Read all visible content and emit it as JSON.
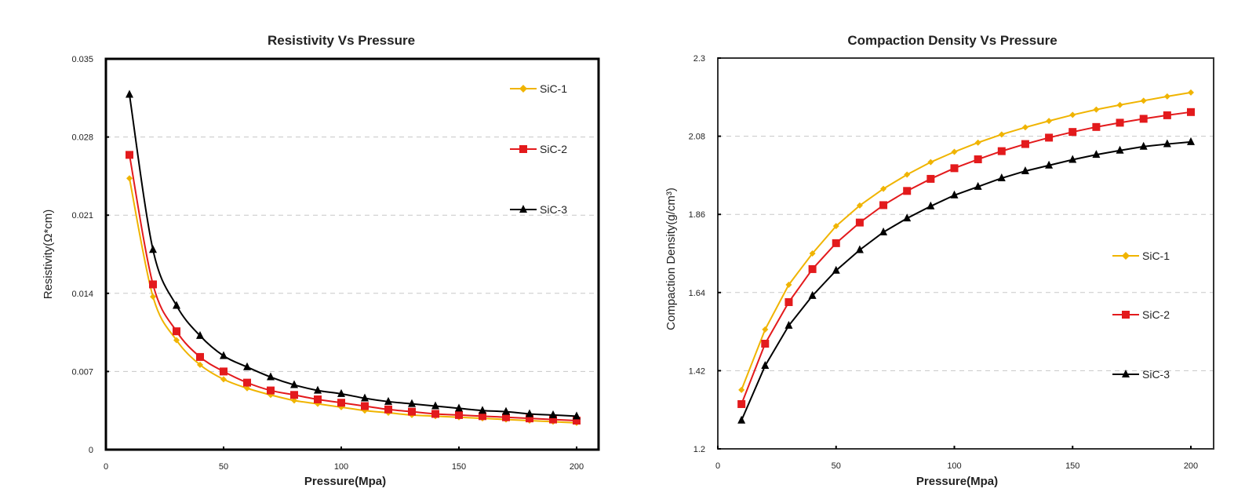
{
  "chart_data": [
    {
      "type": "line",
      "title": "Resistivity Vs Pressure",
      "xlabel": "Pressure(Mpa)",
      "ylabel": "Resistivity(Ω*cm)",
      "xlim": [
        0,
        210
      ],
      "ylim": [
        0,
        0.035
      ],
      "xticks": [
        0,
        50,
        100,
        150,
        200
      ],
      "yticks": [
        0,
        0.007,
        0.014,
        0.021,
        0.028,
        0.035
      ],
      "xtick_labels": [
        "0",
        "50",
        "100",
        "150",
        "200"
      ],
      "ytick_labels": [
        "0",
        "0.007",
        "0.014",
        "0.021",
        "0.028",
        "0.035"
      ],
      "grid": "horizontal-dashed",
      "legend_position": "top-right",
      "x": [
        10,
        20,
        30,
        40,
        50,
        60,
        70,
        80,
        90,
        100,
        110,
        120,
        130,
        140,
        150,
        160,
        170,
        180,
        190,
        200
      ],
      "series": [
        {
          "name": "SiC-1",
          "color": "#f0b400",
          "marker": "diamond",
          "values": [
            0.0243,
            0.0137,
            0.0098,
            0.0076,
            0.0063,
            0.0055,
            0.0049,
            0.0044,
            0.0041,
            0.0038,
            0.0035,
            0.0033,
            0.0031,
            0.003,
            0.0029,
            0.0028,
            0.0027,
            0.0026,
            0.0025,
            0.0024
          ]
        },
        {
          "name": "SiC-2",
          "color": "#e31a1c",
          "marker": "square",
          "values": [
            0.0264,
            0.0148,
            0.0106,
            0.0083,
            0.007,
            0.006,
            0.0053,
            0.0049,
            0.0045,
            0.0042,
            0.0039,
            0.0036,
            0.0034,
            0.0032,
            0.0031,
            0.003,
            0.0029,
            0.0028,
            0.0027,
            0.0026
          ]
        },
        {
          "name": "SiC-3",
          "color": "#000000",
          "marker": "triangle",
          "values": [
            0.0318,
            0.0179,
            0.0129,
            0.0102,
            0.0084,
            0.0074,
            0.0065,
            0.0058,
            0.0053,
            0.005,
            0.0046,
            0.0043,
            0.0041,
            0.0039,
            0.0037,
            0.0035,
            0.0034,
            0.0032,
            0.0031,
            0.003
          ]
        }
      ]
    },
    {
      "type": "line",
      "title": "Compaction Density Vs Pressure",
      "xlabel": "Pressure(Mpa)",
      "ylabel": "Compaction Density(g/cm³)",
      "xlim": [
        0,
        210
      ],
      "ylim": [
        1.2,
        2.3
      ],
      "xticks": [
        0,
        50,
        100,
        150,
        200
      ],
      "yticks": [
        1.2,
        1.42,
        1.64,
        1.86,
        2.08,
        2.3
      ],
      "xtick_labels": [
        "0",
        "50",
        "100",
        "150",
        "200"
      ],
      "ytick_labels": [
        "1.2",
        "1.42",
        "1.64",
        "1.86",
        "2.08",
        "2.3"
      ],
      "grid": "horizontal-dashed",
      "legend_position": "right",
      "x": [
        10,
        20,
        30,
        40,
        50,
        60,
        70,
        80,
        90,
        100,
        110,
        120,
        130,
        140,
        150,
        160,
        170,
        180,
        190,
        200
      ],
      "series": [
        {
          "name": "SiC-1",
          "color": "#f0b400",
          "marker": "diamond",
          "values": [
            1.366,
            1.536,
            1.662,
            1.75,
            1.827,
            1.885,
            1.932,
            1.972,
            2.007,
            2.036,
            2.062,
            2.085,
            2.105,
            2.123,
            2.14,
            2.155,
            2.168,
            2.18,
            2.192,
            2.203
          ]
        },
        {
          "name": "SiC-2",
          "color": "#e31a1c",
          "marker": "square",
          "values": [
            1.326,
            1.496,
            1.613,
            1.706,
            1.779,
            1.837,
            1.886,
            1.926,
            1.96,
            1.99,
            2.015,
            2.038,
            2.058,
            2.076,
            2.092,
            2.106,
            2.118,
            2.129,
            2.139,
            2.148
          ]
        },
        {
          "name": "SiC-3",
          "color": "#000000",
          "marker": "triangle",
          "values": [
            1.28,
            1.434,
            1.547,
            1.631,
            1.702,
            1.76,
            1.81,
            1.849,
            1.883,
            1.914,
            1.938,
            1.962,
            1.982,
            1.998,
            2.014,
            2.028,
            2.04,
            2.051,
            2.058,
            2.064
          ]
        }
      ]
    }
  ]
}
